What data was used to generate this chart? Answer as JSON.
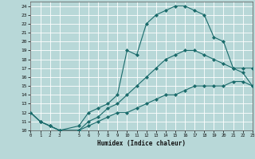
{
  "title": "",
  "xlabel": "Humidex (Indice chaleur)",
  "bg_color": "#b8d8d8",
  "grid_color": "#ffffff",
  "line_color": "#1a6b6b",
  "xmin": 0,
  "xmax": 23,
  "ymin": 10,
  "ymax": 24.5,
  "xticks": [
    0,
    1,
    2,
    3,
    5,
    6,
    7,
    8,
    9,
    10,
    11,
    12,
    13,
    14,
    15,
    16,
    17,
    18,
    19,
    20,
    21,
    22,
    23
  ],
  "yticks": [
    10,
    11,
    12,
    13,
    14,
    15,
    16,
    17,
    18,
    19,
    20,
    21,
    22,
    23,
    24
  ],
  "line1_x": [
    0,
    1,
    2,
    3,
    5,
    6,
    7,
    8,
    9,
    10,
    11,
    12,
    13,
    14,
    15,
    16,
    17,
    18,
    19,
    20,
    21,
    22,
    23
  ],
  "line1_y": [
    12,
    11,
    10.5,
    10,
    10.5,
    12,
    12.5,
    13,
    14,
    19,
    18.5,
    22,
    23,
    23.5,
    24,
    24,
    23.5,
    23,
    20.5,
    20,
    17,
    16.5,
    15
  ],
  "line2_x": [
    0,
    1,
    2,
    3,
    5,
    6,
    7,
    8,
    9,
    10,
    11,
    12,
    13,
    14,
    15,
    16,
    17,
    18,
    19,
    20,
    21,
    22,
    23
  ],
  "line2_y": [
    12,
    11,
    10.5,
    10,
    10,
    11,
    11.5,
    12.5,
    13,
    14,
    15,
    16,
    17,
    18,
    18.5,
    19,
    19,
    18.5,
    18,
    17.5,
    17,
    17,
    17
  ],
  "line3_x": [
    0,
    1,
    2,
    3,
    5,
    6,
    7,
    8,
    9,
    10,
    11,
    12,
    13,
    14,
    15,
    16,
    17,
    18,
    19,
    20,
    21,
    22,
    23
  ],
  "line3_y": [
    12,
    11,
    10.5,
    10,
    10,
    10.5,
    11,
    11.5,
    12,
    12,
    12.5,
    13,
    13.5,
    14,
    14,
    14.5,
    15,
    15,
    15,
    15,
    15.5,
    15.5,
    15
  ]
}
